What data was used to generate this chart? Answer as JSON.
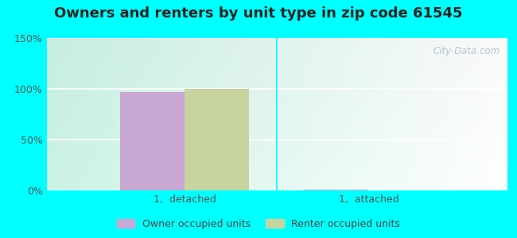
{
  "title": "Owners and renters by unit type in zip code 61545",
  "categories": [
    "1,  detached",
    "1,  attached"
  ],
  "owner_values": [
    97,
    1
  ],
  "renter_values": [
    100,
    0
  ],
  "owner_color": "#c9a8d4",
  "renter_color": "#c8d4a0",
  "owner_label": "Owner occupied units",
  "renter_label": "Renter occupied units",
  "ylim": [
    0,
    150
  ],
  "yticks": [
    0,
    50,
    100,
    150
  ],
  "yticklabels": [
    "0%",
    "50%",
    "100%",
    "150%"
  ],
  "outer_bg": "#00ffff",
  "bar_width": 0.35,
  "title_fontsize": 13,
  "watermark": "City-Data.com",
  "grid_color": "#dddddd",
  "tick_label_color": "#555555"
}
